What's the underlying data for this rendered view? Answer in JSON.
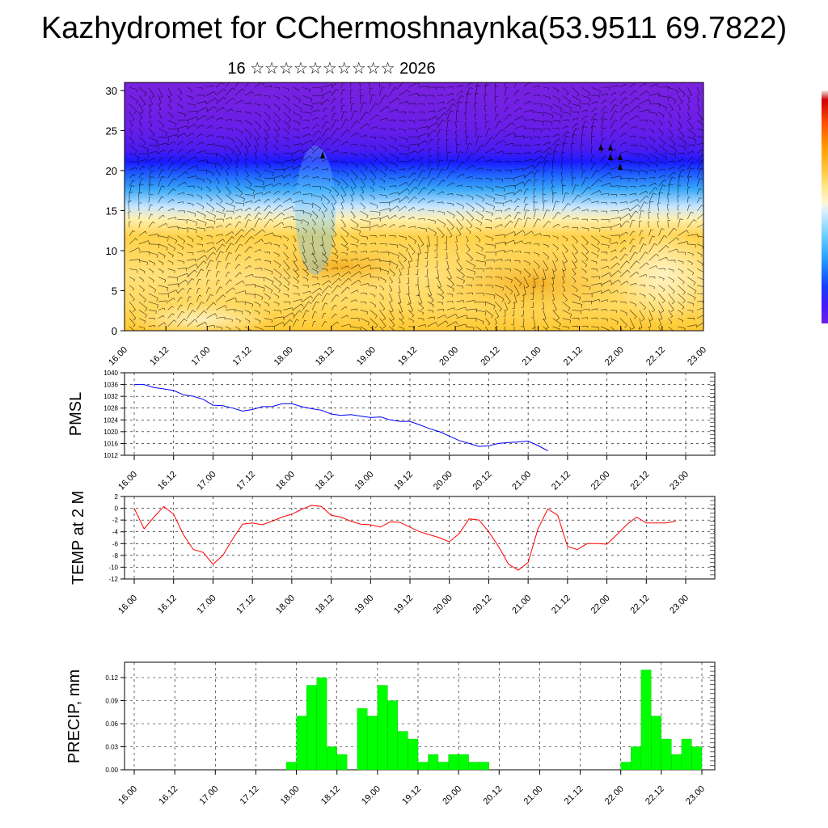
{
  "figure": {
    "title": "Kazhydromet for CChermoshnaynka(53.9511 69.7822)",
    "subtitle": "16 ☆☆☆☆☆☆☆☆☆☆ 2026"
  },
  "chart_data": [
    {
      "id": "cross-section",
      "type": "heatmap",
      "title": "",
      "xlabel": "",
      "ylabel": "",
      "x_tick_labels": [
        "16.00",
        "16.12",
        "17.00",
        "17.12",
        "18.00",
        "18.12",
        "19.00",
        "19.12",
        "20.00",
        "20.12",
        "21.00",
        "21.12",
        "22.00",
        "22.12",
        "23.00"
      ],
      "y_ticks": [
        0,
        5,
        10,
        15,
        20,
        25,
        30
      ],
      "ylim": [
        0,
        31
      ],
      "description_layers": [
        "color-filled field",
        "wind barbs"
      ]
    },
    {
      "id": "pmsl",
      "type": "line",
      "ylabel": "PMSL",
      "color": "#0000ff",
      "ylim": [
        1012,
        1040
      ],
      "y_ticks": [
        1012,
        1016,
        1020,
        1024,
        1028,
        1032,
        1036,
        1040
      ],
      "x_tick_labels": [
        "16.00",
        "16.12",
        "17.00",
        "17.12",
        "18.00",
        "18.12",
        "19.00",
        "19.12",
        "20.00",
        "20.12",
        "21.00",
        "21.12",
        "22.00",
        "22.12",
        "23.00"
      ],
      "step_hours": 3,
      "values": [
        1036,
        1036,
        1035,
        1034.5,
        1034,
        1032.5,
        1032,
        1031,
        1029,
        1028.8,
        1028,
        1027,
        1027.5,
        1028.5,
        1028.5,
        1029.5,
        1029.5,
        1028.5,
        1027.8,
        1027.3,
        1026,
        1025.5,
        1025.8,
        1025.3,
        1024.8,
        1025,
        1024,
        1023.5,
        1023.5,
        1022.3,
        1021,
        1020,
        1018.5,
        1017,
        1016,
        1015,
        1015.2,
        1016,
        1016.3,
        1016.5,
        1016.8,
        1015.3,
        1013.5
      ]
    },
    {
      "id": "temp2m",
      "type": "line",
      "ylabel": "TEMP at 2 M",
      "color": "#ff0000",
      "ylim": [
        -12,
        2
      ],
      "y_ticks": [
        -12,
        -10,
        -8,
        -6,
        -4,
        -2,
        0,
        2
      ],
      "x_tick_labels": [
        "16.00",
        "16.12",
        "17.00",
        "17.12",
        "18.00",
        "18.12",
        "19.00",
        "19.12",
        "20.00",
        "20.12",
        "21.00",
        "21.12",
        "22.00",
        "22.12",
        "23.00"
      ],
      "step_hours": 3,
      "values": [
        0,
        -3.5,
        -1.5,
        0.3,
        -1,
        -4.5,
        -7,
        -7.5,
        -9.5,
        -8,
        -5.2,
        -2.7,
        -2.5,
        -2.8,
        -2.2,
        -1.5,
        -1,
        -0.2,
        0.5,
        0.3,
        -1.2,
        -1.5,
        -2.2,
        -2.7,
        -2.8,
        -3.2,
        -2.3,
        -2.4,
        -3.2,
        -4,
        -4.5,
        -5,
        -5.7,
        -4.3,
        -1.8,
        -2,
        -4,
        -6.5,
        -9.5,
        -10.5,
        -9.2,
        -3.5,
        -0.1,
        -1.2,
        -6.5,
        -7,
        -6,
        -6,
        -6.1,
        -4.5,
        -2.8,
        -1.5,
        -2.5,
        -2.5,
        -2.5,
        -2.2
      ]
    },
    {
      "id": "precip",
      "type": "bar",
      "ylabel": "PRECIP, mm",
      "color": "#00ff00",
      "ylim": [
        0,
        0.14
      ],
      "y_ticks": [
        "0.00",
        "0.03",
        "0.06",
        "0.09",
        "0.12"
      ],
      "x_tick_labels": [
        "16.00",
        "16.12",
        "17.00",
        "17.12",
        "18.00",
        "18.12",
        "19.00",
        "19.12",
        "20.00",
        "20.12",
        "21.00",
        "21.12",
        "22.00",
        "22.12",
        "23.00"
      ],
      "step_hours": 3,
      "values": [
        0,
        0,
        0,
        0,
        0,
        0,
        0,
        0,
        0,
        0,
        0,
        0,
        0,
        0,
        0,
        0,
        0.01,
        0.07,
        0.11,
        0.12,
        0.03,
        0.02,
        0,
        0.08,
        0.07,
        0.11,
        0.09,
        0.05,
        0.04,
        0.01,
        0.02,
        0.01,
        0.02,
        0.02,
        0.01,
        0.01,
        0,
        0,
        0,
        0,
        0,
        0,
        0,
        0,
        0,
        0,
        0,
        0,
        0,
        0.01,
        0.03,
        0.13,
        0.07,
        0.04,
        0.02,
        0.04,
        0.03
      ]
    }
  ]
}
